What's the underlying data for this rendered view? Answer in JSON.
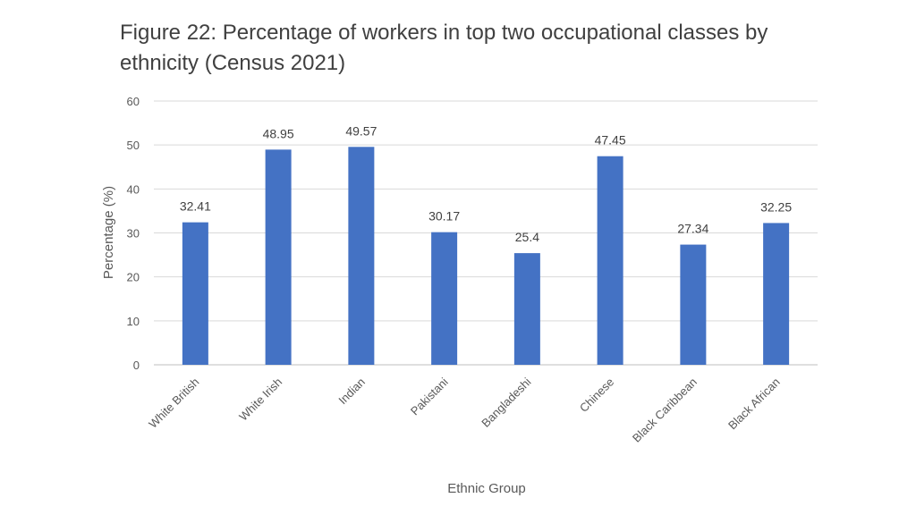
{
  "chart_data": {
    "type": "bar",
    "title": "Figure 22: Percentage of workers in top two occupational classes by ethnicity (Census 2021)",
    "xlabel": "Ethnic Group",
    "ylabel": "Percentage (%)",
    "ylim": [
      0,
      60
    ],
    "yticks": [
      0,
      10,
      20,
      30,
      40,
      50,
      60
    ],
    "grid": true,
    "legend": "none",
    "bar_color": "#4472C4",
    "categories": [
      "White British",
      "White Irish",
      "Indian",
      "Pakistani",
      "Bangladeshi",
      "Chinese",
      "Black Caribbean",
      "Black African"
    ],
    "values": [
      32.41,
      48.95,
      49.57,
      30.17,
      25.4,
      47.45,
      27.34,
      32.25
    ],
    "data_labels": [
      "32.41",
      "48.95",
      "49.57",
      "30.17",
      "25.4",
      "47.45",
      "27.34",
      "32.25"
    ]
  }
}
